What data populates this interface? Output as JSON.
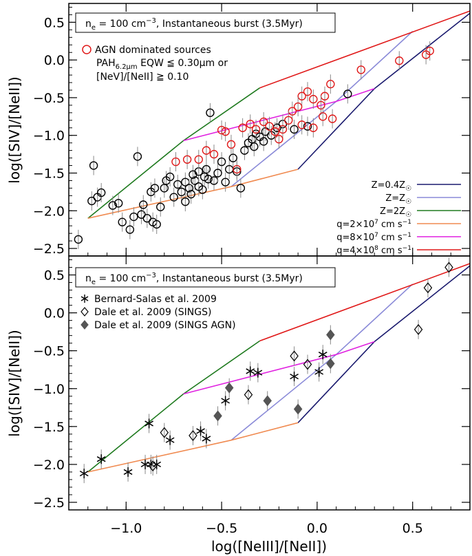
{
  "chart_data": [
    {
      "panel": "top",
      "type": "scatter",
      "box_label": {
        "pre": "n",
        "sub": "e",
        "mid": " = 100 cm",
        "sup": "−3",
        "post": ", Instantaneous burst (3.5Myr)"
      },
      "agn_legend": {
        "marker": "AGN dominated sources",
        "crit_pre": "PAH",
        "crit_sub": "6.2μm",
        "crit_mid": " EQW ≦ 0.30μm or",
        "crit2": "[NeV]/[NeII] ≧ 0.10"
      },
      "ylabel": "log([SIV]/[NeII])",
      "xlim": [
        -1.3,
        0.8
      ],
      "ylim": [
        -2.6,
        0.75
      ],
      "xticks": [
        -1.0,
        -0.5,
        0.0,
        0.5
      ],
      "yticks": [
        0.5,
        0.0,
        -0.5,
        -1.0,
        -1.5,
        -2.0,
        -2.5
      ],
      "ytick_labels": [
        "0.5",
        "0.0",
        "−0.5",
        "−1.0",
        "−1.5",
        "−2.0",
        "−2.5"
      ],
      "model_legend": [
        {
          "pre": "Z=0.4Z",
          "sym": "☉",
          "post": "",
          "sup": "",
          "color": "#1a1a6e"
        },
        {
          "pre": "Z=Z",
          "sym": "☉",
          "post": "",
          "sup": "",
          "color": "#8a8ad8"
        },
        {
          "pre": "Z=2Z",
          "sym": "☉",
          "post": "",
          "sup": "",
          "color": "#1e7a1e"
        },
        {
          "pre": "q=2×10",
          "sym": "",
          "post": " cm s",
          "sup": "7",
          "sup2": "−1",
          "color": "#f08a50"
        },
        {
          "pre": "q=8×10",
          "sym": "",
          "post": " cm s",
          "sup": "7",
          "sup2": "−1",
          "color": "#e020e0"
        },
        {
          "pre": "q=4×10",
          "sym": "",
          "post": " cm s",
          "sup": "8",
          "sup2": "−1",
          "color": "#e01818"
        }
      ],
      "grid_lines": [
        {
          "name": "z-0.4",
          "color": "#1a1a6e",
          "points": [
            [
              -0.1,
              -1.45
            ],
            [
              0.3,
              -0.38
            ],
            [
              0.8,
              0.62
            ]
          ]
        },
        {
          "name": "z-1",
          "color": "#8a8ad8",
          "points": [
            [
              -0.45,
              -1.68
            ],
            [
              0.1,
              -0.55
            ],
            [
              0.5,
              0.38
            ]
          ]
        },
        {
          "name": "z-2",
          "color": "#1e7a1e",
          "points": [
            [
              -1.2,
              -2.1
            ],
            [
              -0.7,
              -1.07
            ],
            [
              -0.3,
              -0.37
            ]
          ]
        },
        {
          "name": "q-2e7",
          "color": "#f08a50",
          "points": [
            [
              -1.2,
              -2.1
            ],
            [
              -0.45,
              -1.68
            ],
            [
              -0.1,
              -1.45
            ]
          ]
        },
        {
          "name": "q-8e7",
          "color": "#e020e0",
          "points": [
            [
              -0.7,
              -1.07
            ],
            [
              0.1,
              -0.55
            ],
            [
              0.3,
              -0.38
            ]
          ]
        },
        {
          "name": "q-4e8",
          "color": "#e01818",
          "points": [
            [
              -0.3,
              -0.37
            ],
            [
              0.8,
              0.65
            ]
          ]
        }
      ],
      "series": [
        {
          "name": "SINGS / Bernard-Salas sources",
          "marker": "circle",
          "color": "#000000",
          "points": [
            [
              -1.18,
              -1.87
            ],
            [
              -1.17,
              -1.4
            ],
            [
              -1.15,
              -1.82
            ],
            [
              -1.13,
              -1.76
            ],
            [
              -1.07,
              -1.93
            ],
            [
              -1.04,
              -1.9
            ],
            [
              -1.02,
              -2.15
            ],
            [
              -0.98,
              -2.25
            ],
            [
              -0.96,
              -2.08
            ],
            [
              -0.94,
              -1.28
            ],
            [
              -0.92,
              -2.05
            ],
            [
              -0.89,
              -2.1
            ],
            [
              -0.87,
              -1.75
            ],
            [
              -0.86,
              -2.15
            ],
            [
              -0.84,
              -2.18
            ],
            [
              -0.82,
              -1.95
            ],
            [
              -0.79,
              -1.6
            ],
            [
              -0.77,
              -1.55
            ],
            [
              -0.75,
              -1.82
            ],
            [
              -0.73,
              -1.65
            ],
            [
              -0.71,
              -1.75
            ],
            [
              -0.69,
              -1.62
            ],
            [
              -0.67,
              -1.7
            ],
            [
              -0.64,
              -1.6
            ],
            [
              -0.62,
              -1.48
            ],
            [
              -0.6,
              -1.72
            ],
            [
              -0.58,
              -1.45
            ],
            [
              -0.56,
              -0.7
            ],
            [
              -0.54,
              -1.6
            ],
            [
              -0.52,
              -1.5
            ],
            [
              -0.5,
              -1.35
            ],
            [
              -0.48,
              -1.62
            ],
            [
              -0.46,
              -1.45
            ],
            [
              -0.44,
              -1.3
            ],
            [
              -0.42,
              -1.48
            ],
            [
              -0.4,
              -1.7
            ],
            [
              -0.38,
              -1.2
            ],
            [
              -0.36,
              -1.1
            ],
            [
              -0.34,
              -1.05
            ],
            [
              -0.32,
              -0.98
            ],
            [
              -0.3,
              -1.02
            ],
            [
              -0.27,
              -0.95
            ],
            [
              -0.24,
              -1.0
            ],
            [
              -0.21,
              -0.9
            ],
            [
              -0.18,
              -0.85
            ],
            [
              -0.12,
              -0.92
            ],
            [
              -0.05,
              -0.88
            ],
            [
              -0.85,
              -1.7
            ],
            [
              -0.65,
              -1.52
            ],
            [
              -0.57,
              -1.58
            ],
            [
              -0.33,
              -1.15
            ],
            [
              -0.28,
              -1.08
            ],
            [
              -1.25,
              -2.38
            ],
            [
              0.16,
              -0.45
            ],
            [
              -0.69,
              -1.88
            ],
            [
              -0.66,
              -1.78
            ],
            [
              -0.62,
              -1.68
            ],
            [
              -0.59,
              -1.55
            ],
            [
              -0.8,
              -1.7
            ],
            [
              -0.91,
              -1.92
            ]
          ]
        },
        {
          "name": "AGN dominated sources",
          "marker": "circle",
          "color": "#e01818",
          "points": [
            [
              0.59,
              0.12
            ],
            [
              0.57,
              0.07
            ],
            [
              0.43,
              -0.01
            ],
            [
              0.23,
              -0.13
            ],
            [
              0.07,
              -0.32
            ],
            [
              0.04,
              -0.48
            ],
            [
              0.02,
              -0.6
            ],
            [
              -0.02,
              -0.52
            ],
            [
              -0.05,
              -0.42
            ],
            [
              -0.08,
              -0.48
            ],
            [
              -0.1,
              -0.62
            ],
            [
              -0.13,
              -0.68
            ],
            [
              -0.15,
              -0.8
            ],
            [
              -0.18,
              -0.92
            ],
            [
              -0.2,
              -1.05
            ],
            [
              -0.22,
              -0.95
            ],
            [
              -0.25,
              -0.88
            ],
            [
              -0.28,
              -0.82
            ],
            [
              -0.32,
              -0.92
            ],
            [
              -0.35,
              -0.85
            ],
            [
              -0.39,
              -0.9
            ],
            [
              -0.42,
              -1.45
            ],
            [
              -0.45,
              -1.12
            ],
            [
              -0.48,
              -0.95
            ],
            [
              -0.5,
              -0.93
            ],
            [
              -0.54,
              -1.25
            ],
            [
              -0.58,
              -1.2
            ],
            [
              -0.62,
              -1.32
            ],
            [
              -0.68,
              -1.32
            ],
            [
              -0.74,
              -1.35
            ],
            [
              -0.02,
              -0.9
            ],
            [
              -0.08,
              -0.86
            ],
            [
              0.08,
              -0.78
            ],
            [
              0.03,
              -0.75
            ]
          ]
        }
      ]
    },
    {
      "panel": "bottom",
      "type": "scatter",
      "box_label": {
        "pre": "n",
        "sub": "e",
        "mid": " = 100 cm",
        "sup": "−3",
        "post": ", Instantaneous burst (3.5Myr)"
      },
      "xlabel": "log([NeIII]/[NeII])",
      "ylabel": "log([SIV]/[NeII])",
      "xlim": [
        -1.3,
        0.8
      ],
      "ylim": [
        -2.6,
        0.75
      ],
      "xticks": [
        -1.0,
        -0.5,
        0.0,
        0.5
      ],
      "xtick_labels": [
        "−1.0",
        "−0.5",
        "0.0",
        "0.5"
      ],
      "yticks": [
        0.5,
        0.0,
        -0.5,
        -1.0,
        -1.5,
        -2.0,
        -2.5
      ],
      "ytick_labels": [
        "0.5",
        "0.0",
        "−0.5",
        "−1.0",
        "−1.5",
        "−2.0",
        "−2.5"
      ],
      "legend": [
        {
          "marker": "asterisk",
          "label": "Bernard-Salas et al. 2009"
        },
        {
          "marker": "diamond-open",
          "label": "Dale et al. 2009 (SINGS)"
        },
        {
          "marker": "diamond-filled",
          "label": "Dale et al. 2009 (SINGS AGN)"
        }
      ],
      "grid_lines": [
        {
          "name": "z-0.4",
          "color": "#1a1a6e",
          "points": [
            [
              -0.1,
              -1.45
            ],
            [
              0.3,
              -0.38
            ],
            [
              0.8,
              0.62
            ]
          ]
        },
        {
          "name": "z-1",
          "color": "#8a8ad8",
          "points": [
            [
              -0.45,
              -1.68
            ],
            [
              0.1,
              -0.55
            ],
            [
              0.5,
              0.38
            ]
          ]
        },
        {
          "name": "z-2",
          "color": "#1e7a1e",
          "points": [
            [
              -1.2,
              -2.1
            ],
            [
              -0.7,
              -1.07
            ],
            [
              -0.3,
              -0.37
            ]
          ]
        },
        {
          "name": "q-2e7",
          "color": "#f08a50",
          "points": [
            [
              -1.2,
              -2.1
            ],
            [
              -0.45,
              -1.68
            ],
            [
              -0.1,
              -1.45
            ]
          ]
        },
        {
          "name": "q-8e7",
          "color": "#e020e0",
          "points": [
            [
              -0.7,
              -1.07
            ],
            [
              0.1,
              -0.55
            ],
            [
              0.3,
              -0.38
            ]
          ]
        },
        {
          "name": "q-4e8",
          "color": "#e01818",
          "points": [
            [
              -0.3,
              -0.37
            ],
            [
              0.8,
              0.65
            ]
          ]
        }
      ],
      "series": [
        {
          "name": "Bernard-Salas et al. 2009",
          "marker": "asterisk",
          "points": [
            [
              -1.22,
              -2.12
            ],
            [
              -1.13,
              -1.93
            ],
            [
              -0.99,
              -2.1
            ],
            [
              -0.9,
              -2.0
            ],
            [
              -0.87,
              -2.0
            ],
            [
              -0.84,
              -2.0
            ],
            [
              -0.88,
              -1.46
            ],
            [
              -0.77,
              -1.68
            ],
            [
              -0.61,
              -1.56
            ],
            [
              -0.58,
              -1.66
            ],
            [
              -0.48,
              -1.16
            ],
            [
              -0.35,
              -0.77
            ],
            [
              -0.31,
              -0.79
            ],
            [
              -0.12,
              -0.84
            ],
            [
              0.03,
              -0.55
            ],
            [
              0.01,
              -0.78
            ]
          ]
        },
        {
          "name": "Dale et al. 2009 (SINGS)",
          "marker": "diamond-open",
          "points": [
            [
              -0.8,
              -1.58
            ],
            [
              -0.86,
              -2.02
            ],
            [
              -0.65,
              -1.62
            ],
            [
              -0.36,
              -1.08
            ],
            [
              -0.12,
              -0.57
            ],
            [
              -0.05,
              -0.68
            ],
            [
              0.58,
              0.33
            ],
            [
              0.53,
              -0.22
            ],
            [
              0.69,
              0.6
            ]
          ]
        },
        {
          "name": "Dale et al. 2009 (SINGS AGN)",
          "marker": "diamond-filled",
          "points": [
            [
              -0.46,
              -0.99
            ],
            [
              -0.52,
              -1.36
            ],
            [
              -0.26,
              -1.16
            ],
            [
              -0.1,
              -1.27
            ],
            [
              0.07,
              -0.29
            ],
            [
              0.07,
              -0.67
            ]
          ]
        }
      ]
    }
  ]
}
